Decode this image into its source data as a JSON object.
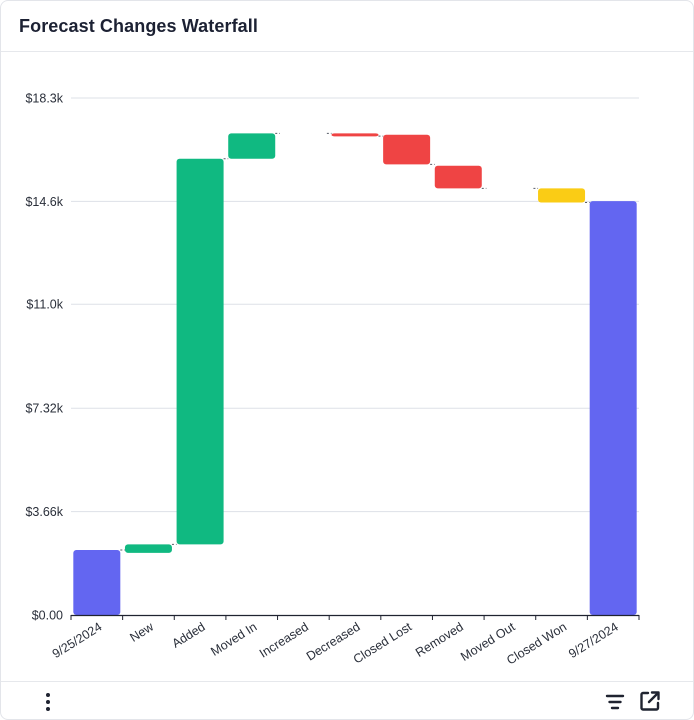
{
  "header": {
    "title": "Forecast Changes Waterfall"
  },
  "chart_data": {
    "type": "waterfall",
    "title": "Forecast Changes Waterfall",
    "categories": [
      "9/25/2024",
      "New",
      "Added",
      "Moved In",
      "Increased",
      "Decreased",
      "Closed Lost",
      "Removed",
      "Moved Out",
      "Closed Won",
      "9/27/2024"
    ],
    "bars": [
      {
        "label": "9/25/2024",
        "kind": "total",
        "start": 0,
        "end": 2300
      },
      {
        "label": "New",
        "kind": "increase",
        "start": 2200,
        "end": 2500
      },
      {
        "label": "Added",
        "kind": "increase",
        "start": 2500,
        "end": 16150
      },
      {
        "label": "Moved In",
        "kind": "increase",
        "start": 16150,
        "end": 17050
      },
      {
        "label": "Increased",
        "kind": "none",
        "start": 17050,
        "end": 17050
      },
      {
        "label": "Decreased",
        "kind": "decrease",
        "start": 17050,
        "end": 16950
      },
      {
        "label": "Closed Lost",
        "kind": "decrease",
        "start": 17000,
        "end": 15950
      },
      {
        "label": "Removed",
        "kind": "decrease",
        "start": 15900,
        "end": 15100
      },
      {
        "label": "Moved Out",
        "kind": "none",
        "start": 15100,
        "end": 15100
      },
      {
        "label": "Closed Won",
        "kind": "won",
        "start": 15100,
        "end": 14600
      },
      {
        "label": "9/27/2024",
        "kind": "total",
        "start": 0,
        "end": 14650
      }
    ],
    "yticks": [
      {
        "value": 0,
        "label": "$0.00"
      },
      {
        "value": 3660,
        "label": "$3.66k"
      },
      {
        "value": 7320,
        "label": "$7.32k"
      },
      {
        "value": 11000,
        "label": "$11.0k"
      },
      {
        "value": 14640,
        "label": "$14.6k"
      },
      {
        "value": 18300,
        "label": "$18.3k"
      }
    ],
    "ylim": [
      0,
      18300
    ],
    "colors": {
      "total": "#6366f1",
      "increase": "#10b981",
      "decrease": "#ef4444",
      "won": "#facc15",
      "grid": "#dde1e7",
      "axis": "#1f2330",
      "connector": "#555b66"
    }
  },
  "footer": {
    "menu_icon": "kebab-icon",
    "filter_icon": "filter-lines-icon",
    "open_icon": "open-external-icon"
  }
}
